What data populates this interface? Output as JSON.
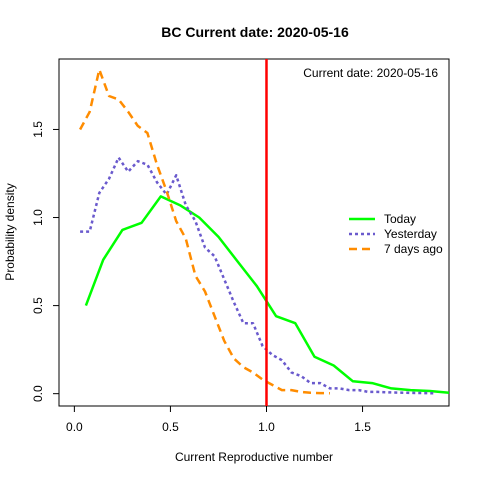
{
  "chart_data": {
    "type": "line",
    "title": "BC   Current date:  2020-05-16",
    "xlabel": "Current Reproductive number",
    "ylabel": "Probability density",
    "xlim": [
      -0.08,
      1.95
    ],
    "ylim": [
      -0.07,
      1.9
    ],
    "x_ticks": [
      0.0,
      0.5,
      1.0,
      1.5
    ],
    "x_tick_labels": [
      "0.0",
      "0.5",
      "1.0",
      "1.5"
    ],
    "y_ticks": [
      0.0,
      0.5,
      1.0,
      1.5
    ],
    "y_tick_labels": [
      "0.0",
      "0.5",
      "1.0",
      "1.5"
    ],
    "annotation": "Current date:  2020-05-16",
    "reference_line": {
      "x": 1.0,
      "color": "#ff0000"
    },
    "legend_position": "right",
    "series": [
      {
        "name": "Today",
        "color": "#00ff00",
        "dash": "solid",
        "x": [
          0.06,
          0.15,
          0.25,
          0.35,
          0.45,
          0.55,
          0.65,
          0.75,
          0.85,
          0.95,
          1.05,
          1.15,
          1.25,
          1.35,
          1.45,
          1.55,
          1.65,
          1.75,
          1.85,
          1.95
        ],
        "y": [
          0.5,
          0.76,
          0.93,
          0.97,
          1.12,
          1.07,
          1.0,
          0.89,
          0.75,
          0.61,
          0.44,
          0.4,
          0.21,
          0.16,
          0.07,
          0.06,
          0.03,
          0.02,
          0.015,
          0.005
        ]
      },
      {
        "name": "Yesterday",
        "color": "#6a5acd",
        "dash": "dotted",
        "x": [
          0.03,
          0.08,
          0.13,
          0.18,
          0.23,
          0.28,
          0.33,
          0.38,
          0.43,
          0.48,
          0.53,
          0.58,
          0.63,
          0.68,
          0.73,
          0.78,
          0.83,
          0.88,
          0.93,
          0.98,
          1.03,
          1.08,
          1.13,
          1.18,
          1.23,
          1.28,
          1.33,
          1.38,
          1.43,
          1.48,
          1.53,
          1.58,
          1.63,
          1.68,
          1.73,
          1.78,
          1.83,
          1.88
        ],
        "y": [
          0.92,
          0.92,
          1.14,
          1.22,
          1.34,
          1.26,
          1.32,
          1.3,
          1.2,
          1.13,
          1.24,
          1.07,
          0.98,
          0.83,
          0.78,
          0.65,
          0.52,
          0.4,
          0.4,
          0.27,
          0.22,
          0.19,
          0.12,
          0.1,
          0.06,
          0.06,
          0.03,
          0.03,
          0.02,
          0.02,
          0.01,
          0.01,
          0.008,
          0.006,
          0.005,
          0.004,
          0.003,
          0.002
        ]
      },
      {
        "name": "7 days ago",
        "color": "#ff8c00",
        "dash": "dashed",
        "x": [
          0.03,
          0.08,
          0.13,
          0.18,
          0.23,
          0.28,
          0.33,
          0.38,
          0.43,
          0.48,
          0.53,
          0.58,
          0.63,
          0.68,
          0.73,
          0.78,
          0.83,
          0.88,
          0.93,
          0.98,
          1.03,
          1.08,
          1.13,
          1.18,
          1.23,
          1.28,
          1.33
        ],
        "y": [
          1.5,
          1.6,
          1.84,
          1.69,
          1.67,
          1.6,
          1.52,
          1.48,
          1.3,
          1.15,
          0.98,
          0.88,
          0.67,
          0.58,
          0.44,
          0.3,
          0.2,
          0.15,
          0.12,
          0.08,
          0.05,
          0.02,
          0.02,
          0.01,
          0.005,
          0.003,
          0.002
        ]
      }
    ]
  }
}
